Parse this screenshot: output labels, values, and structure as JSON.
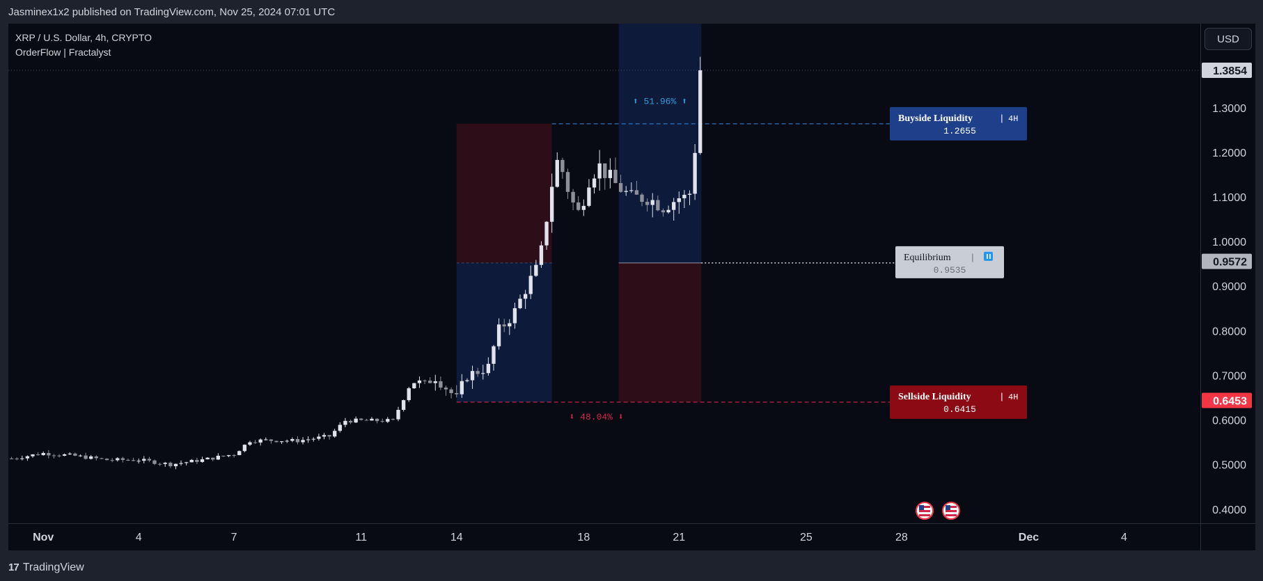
{
  "header": {
    "publisher": "Jasminex1x2 published on TradingView.com, Nov 25, 2024 07:01 UTC"
  },
  "legend": {
    "symbol_line": "XRP / U.S. Dollar, 4h, CRYPTO",
    "indicator_line": "OrderFlow | Fractalyst"
  },
  "currency_button": "USD",
  "footer": {
    "brand": "TradingView",
    "mark": "17"
  },
  "colors": {
    "background": "#090b14",
    "frame": "#1e222d",
    "candle": "#d1d4dc",
    "buy_zone": "#0d1a3a",
    "sell_zone": "#2c0d18",
    "buyside_label": "#1e3f8a",
    "sellside_label": "#8b0a14",
    "equilibrium_label": "#c9cdd6",
    "current_price": "#d1d4dc",
    "red_price": "#f23645"
  },
  "chart_data": {
    "type": "candlestick",
    "symbol": "XRP / U.S. Dollar",
    "interval": "4h",
    "x_ticks": [
      "Nov",
      "4",
      "7",
      "11",
      "14",
      "18",
      "21",
      "25",
      "28",
      "Dec",
      "4"
    ],
    "x_tick_days": [
      1,
      4,
      7,
      11,
      14,
      18,
      21,
      25,
      28,
      32,
      35
    ],
    "y_ticks": [
      "1.3000",
      "1.2000",
      "1.1000",
      "1.0000",
      "0.9000",
      "0.8000",
      "0.7000",
      "0.6000",
      "0.5000",
      "0.4000"
    ],
    "y_tick_values": [
      1.3,
      1.2,
      1.1,
      1.0,
      0.9,
      0.8,
      0.7,
      0.6,
      0.5,
      0.4
    ],
    "ylim": [
      0.37,
      1.49
    ],
    "xlim_days": [
      -0.1,
      37.4
    ],
    "price_labels": [
      {
        "value": 1.3854,
        "text": "1.3854",
        "color": "#d1d4dc",
        "text_color": "#131722"
      },
      {
        "value": 0.9572,
        "text": "0.9572",
        "color": "#b2b5be",
        "text_color": "#131722"
      },
      {
        "value": 0.6453,
        "text": "0.6453",
        "color": "#f23645",
        "text_color": "#ffffff"
      }
    ],
    "zones": {
      "left": {
        "start_day": 14.0,
        "end_day": 17.0,
        "top": 1.2655,
        "mid": 0.9535,
        "bottom": 0.6415
      },
      "right": {
        "start_day": 19.1,
        "end_day": 21.7,
        "top": 1.49,
        "mid": 0.9535,
        "bottom": 0.6415
      }
    },
    "buyside": {
      "label": "Buyside Liquidity",
      "tf": "4H",
      "value": "1.2655",
      "price": 1.2655
    },
    "sellside": {
      "label": "Sellside Liquidity",
      "tf": "4H",
      "value": "0.6415",
      "price": 0.6415
    },
    "equilibrium": {
      "label": "Equilibrium",
      "value": "0.9535",
      "price": 0.9535
    },
    "up_move": "⬆ 51.96% ⬆",
    "down_move": "⬇ 48.04% ⬇",
    "candles_daily_anchors": [
      [
        0.0,
        0.515
      ],
      [
        1.0,
        0.527
      ],
      [
        2.0,
        0.521
      ],
      [
        3.0,
        0.512
      ],
      [
        4.0,
        0.512
      ],
      [
        5.0,
        0.502
      ],
      [
        6.0,
        0.512
      ],
      [
        7.0,
        0.525
      ],
      [
        7.5,
        0.555
      ],
      [
        8.0,
        0.556
      ],
      [
        9.0,
        0.555
      ],
      [
        10.0,
        0.565
      ],
      [
        10.5,
        0.6
      ],
      [
        11.0,
        0.6
      ],
      [
        11.5,
        0.6
      ],
      [
        12.0,
        0.6
      ],
      [
        12.6,
        0.69
      ],
      [
        13.0,
        0.68
      ],
      [
        13.3,
        0.7
      ],
      [
        14.0,
        0.65
      ],
      [
        14.3,
        0.7
      ],
      [
        15.0,
        0.72
      ],
      [
        15.3,
        0.8
      ],
      [
        15.8,
        0.84
      ],
      [
        16.2,
        0.9
      ],
      [
        16.6,
        0.95
      ],
      [
        17.0,
        1.13
      ],
      [
        17.2,
        1.19
      ],
      [
        17.5,
        1.12
      ],
      [
        17.8,
        1.06
      ],
      [
        18.0,
        1.1
      ],
      [
        18.2,
        1.15
      ],
      [
        18.5,
        1.17
      ],
      [
        19.0,
        1.13
      ],
      [
        19.5,
        1.1
      ],
      [
        20.0,
        1.1
      ],
      [
        20.5,
        1.08
      ],
      [
        21.0,
        1.1
      ],
      [
        21.3,
        1.1
      ],
      [
        21.4,
        1.13
      ],
      [
        21.5,
        1.21
      ],
      [
        21.6,
        1.27
      ],
      [
        21.75,
        1.385
      ]
    ],
    "events": [
      "us-flag-icon",
      "us-flag-icon"
    ]
  }
}
